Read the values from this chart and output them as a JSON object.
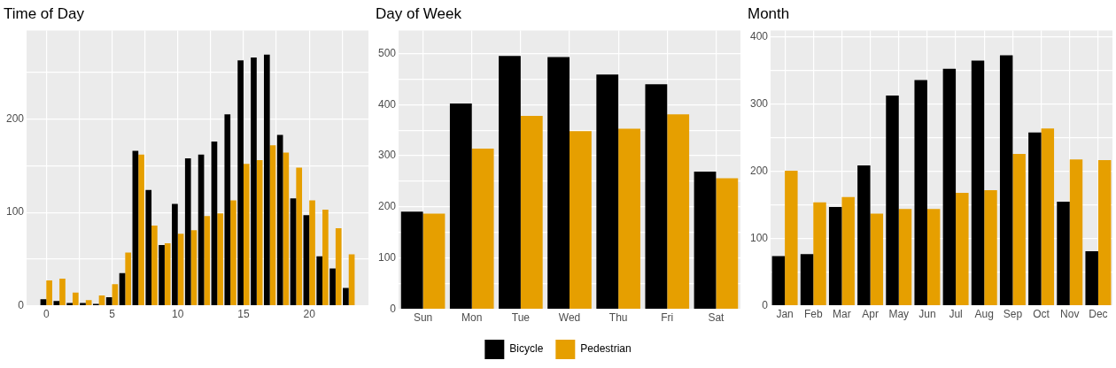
{
  "chart_data": [
    {
      "type": "bar",
      "title": "Time of Day",
      "x": [
        0,
        1,
        2,
        3,
        4,
        5,
        6,
        7,
        8,
        9,
        10,
        11,
        12,
        13,
        14,
        15,
        16,
        17,
        18,
        19,
        20,
        21,
        22,
        23
      ],
      "xlim": [
        -1.5,
        24.5
      ],
      "xticks": [
        0,
        {
          "value": 2.5,
          "label": null
        },
        5,
        {
          "value": 7.5,
          "label": null
        },
        10,
        {
          "value": 12.5,
          "label": null
        },
        15,
        {
          "value": 17.5,
          "label": null
        },
        20,
        {
          "value": 22.5,
          "label": null
        }
      ],
      "ylim": [
        0,
        295
      ],
      "yticks": [
        0,
        {
          "value": 50,
          "label": null
        },
        100,
        {
          "value": 150,
          "label": null
        },
        200,
        {
          "value": 250,
          "label": null
        }
      ],
      "grid": true,
      "legend": false,
      "series": [
        {
          "color": "#000000",
          "values": [
            7,
            5,
            3,
            3,
            2,
            9,
            35,
            166,
            124,
            65,
            109,
            158,
            162,
            176,
            205,
            263,
            266,
            269,
            183,
            115,
            97,
            53,
            40,
            19
          ]
        },
        {
          "color": "#e69f00",
          "values": [
            27,
            29,
            14,
            6,
            11,
            23,
            57,
            162,
            86,
            67,
            77,
            81,
            96,
            99,
            113,
            152,
            156,
            172,
            164,
            148,
            113,
            103,
            83,
            55
          ]
        }
      ]
    },
    {
      "type": "bar",
      "title": "Day of Week",
      "categories": [
        "Sun",
        "Mon",
        "Tue",
        "Wed",
        "Thu",
        "Fri",
        "Sat"
      ],
      "ylim": [
        0,
        545
      ],
      "yticks": [
        0,
        {
          "value": 50,
          "label": null
        },
        100,
        {
          "value": 150,
          "label": null
        },
        200,
        {
          "value": 250,
          "label": null
        },
        300,
        {
          "value": 350,
          "label": null
        },
        400,
        {
          "value": 450,
          "label": null
        },
        500
      ],
      "grid": true,
      "legend": "bottom",
      "series": [
        {
          "name": "Bicycle",
          "color": "#000000",
          "values": [
            191,
            402,
            495,
            493,
            459,
            440,
            269
          ]
        },
        {
          "name": "Pedestrian",
          "color": "#e69f00",
          "values": [
            187,
            314,
            378,
            348,
            353,
            381,
            256
          ]
        }
      ]
    },
    {
      "type": "bar",
      "title": "Month",
      "categories": [
        "Jan",
        "Feb",
        "Mar",
        "Apr",
        "May",
        "Jun",
        "Jul",
        "Aug",
        "Sep",
        "Oct",
        "Nov",
        "Dec"
      ],
      "ylim": [
        0,
        410
      ],
      "yticks": [
        0,
        {
          "value": 50,
          "label": null
        },
        100,
        {
          "value": 150,
          "label": null
        },
        200,
        {
          "value": 250,
          "label": null
        },
        300,
        {
          "value": 350,
          "label": null
        },
        400
      ],
      "grid": true,
      "legend": false,
      "series": [
        {
          "color": "#000000",
          "values": [
            74,
            77,
            147,
            209,
            313,
            336,
            353,
            365,
            373,
            258,
            155,
            81
          ]
        },
        {
          "color": "#e69f00",
          "values": [
            201,
            154,
            162,
            137,
            144,
            144,
            168,
            172,
            226,
            264,
            218,
            217
          ]
        }
      ]
    }
  ]
}
